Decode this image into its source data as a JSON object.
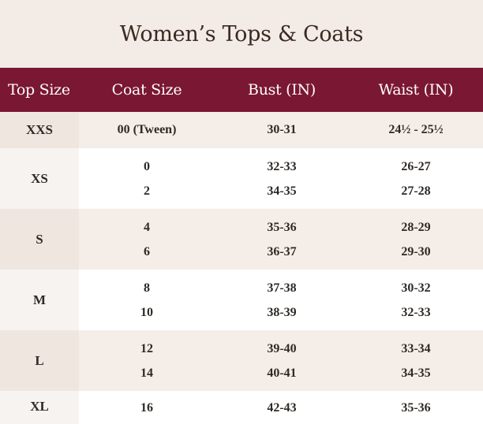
{
  "title": "Women’s Tops & Coats",
  "headers": {
    "top_size": "Top Size",
    "coat_size": "Coat Size",
    "bust": "Bust (IN)",
    "waist": "Waist (IN)"
  },
  "rows": [
    {
      "size": "XXS",
      "lines": [
        {
          "coat": "00 (Tween)",
          "bust": "30-31",
          "waist": "24½ - 25½"
        }
      ]
    },
    {
      "size": "XS",
      "lines": [
        {
          "coat": "0",
          "bust": "32-33",
          "waist": "26-27"
        },
        {
          "coat": "2",
          "bust": "34-35",
          "waist": "27-28"
        }
      ]
    },
    {
      "size": "S",
      "lines": [
        {
          "coat": "4",
          "bust": "35-36",
          "waist": "28-29"
        },
        {
          "coat": "6",
          "bust": "36-37",
          "waist": "29-30"
        }
      ]
    },
    {
      "size": "M",
      "lines": [
        {
          "coat": "8",
          "bust": "37-38",
          "waist": "30-32"
        },
        {
          "coat": "10",
          "bust": "38-39",
          "waist": "32-33"
        }
      ]
    },
    {
      "size": "L",
      "lines": [
        {
          "coat": "12",
          "bust": "39-40",
          "waist": "33-34"
        },
        {
          "coat": "14",
          "bust": "40-41",
          "waist": "34-35"
        }
      ]
    },
    {
      "size": "XL",
      "lines": [
        {
          "coat": "16",
          "bust": "42-43",
          "waist": "35-36"
        }
      ]
    }
  ],
  "colors": {
    "header_bg": "#7a1732",
    "page_bg": "#f3ece6",
    "row_alt": "#ffffff",
    "text": "#2f2a26"
  }
}
